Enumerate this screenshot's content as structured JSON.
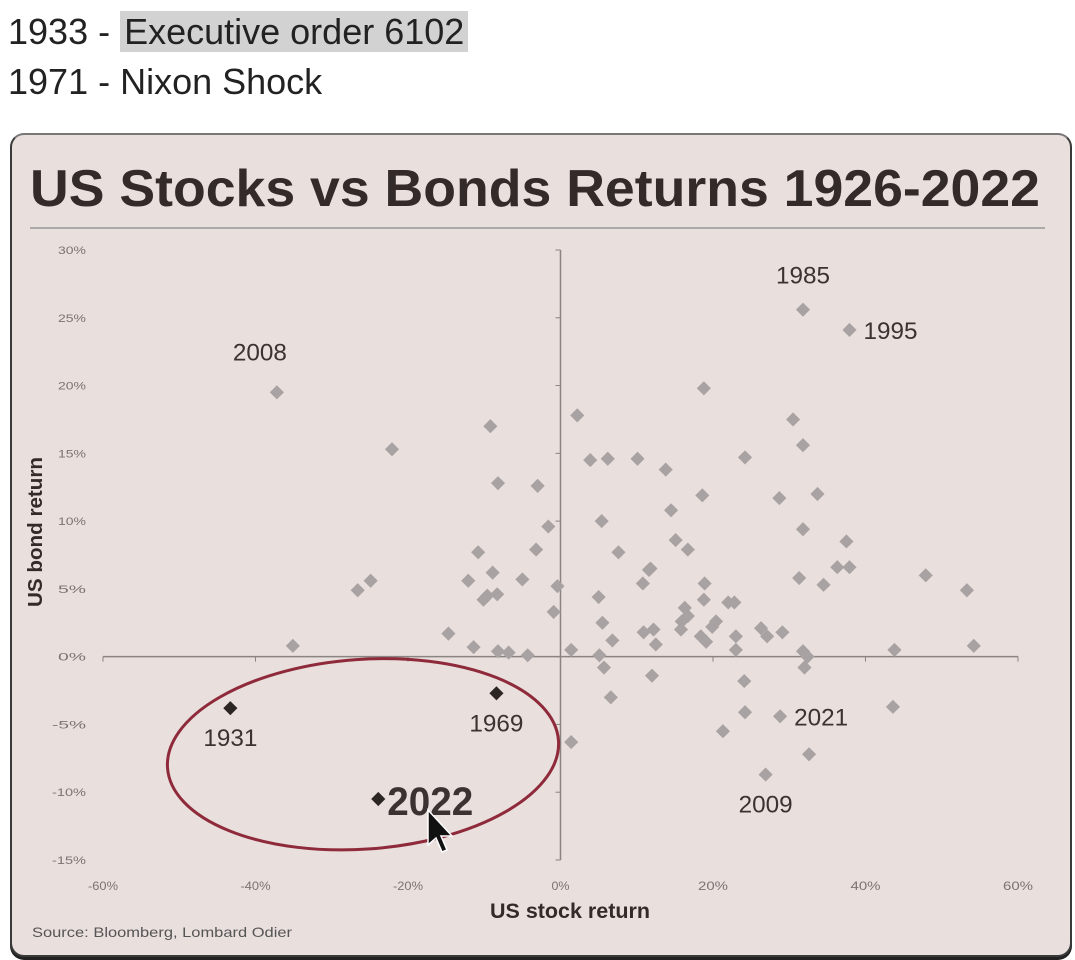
{
  "header": {
    "line1_year": "1933 - ",
    "line1_event": "Executive order 6102",
    "line2": "1971 - Nixon Shock"
  },
  "colors": {
    "background": "#e9dfdd",
    "points": "#a8a3a2",
    "highlight": "#2b2523",
    "ellipse": "#8e2a3a"
  },
  "chart_data": {
    "type": "scatter",
    "title": "US Stocks vs Bonds Returns 1926-2022",
    "xlabel": "US stock return",
    "ylabel": "US bond return",
    "source": "Source: Bloomberg, Lombard Odier",
    "xlim": [
      -60,
      60
    ],
    "ylim": [
      -15,
      30
    ],
    "xticks": [
      "-60%",
      "-40%",
      "-20%",
      "0%",
      "20%",
      "40%",
      "60%"
    ],
    "xtick_values": [
      -60,
      -40,
      -20,
      0,
      20,
      40,
      60
    ],
    "yticks": [
      "30%",
      "25%",
      "20%",
      "15%",
      "10%",
      "5%",
      "0%",
      "-5%",
      "-10%",
      "-15%"
    ],
    "ytick_values": [
      30,
      25,
      20,
      15,
      10,
      5,
      0,
      -5,
      -10,
      -15
    ],
    "grid": false,
    "points": [
      [
        31.8,
        25.6
      ],
      [
        37.9,
        24.1
      ],
      [
        -37.2,
        19.5
      ],
      [
        -22.1,
        15.3
      ],
      [
        -9.2,
        17.0
      ],
      [
        -8.2,
        12.8
      ],
      [
        2.2,
        17.8
      ],
      [
        -3.0,
        12.6
      ],
      [
        3.9,
        14.5
      ],
      [
        6.2,
        14.6
      ],
      [
        10.1,
        14.6
      ],
      [
        13.8,
        13.8
      ],
      [
        18.8,
        19.8
      ],
      [
        14.5,
        10.8
      ],
      [
        24.2,
        14.7
      ],
      [
        30.5,
        17.5
      ],
      [
        31.8,
        15.6
      ],
      [
        33.7,
        12.0
      ],
      [
        28.7,
        11.7
      ],
      [
        18.6,
        11.9
      ],
      [
        -1.6,
        9.6
      ],
      [
        5.4,
        10.0
      ],
      [
        -3.2,
        7.9
      ],
      [
        -10.8,
        7.7
      ],
      [
        -8.9,
        6.2
      ],
      [
        7.6,
        7.7
      ],
      [
        11.6,
        6.4
      ],
      [
        15.1,
        8.6
      ],
      [
        16.7,
        7.9
      ],
      [
        31.8,
        9.4
      ],
      [
        37.5,
        8.5
      ],
      [
        36.3,
        6.6
      ],
      [
        37.9,
        6.6
      ],
      [
        34.5,
        5.3
      ],
      [
        31.3,
        5.8
      ],
      [
        47.9,
        6.0
      ],
      [
        53.3,
        4.9
      ],
      [
        54.2,
        0.8
      ],
      [
        43.8,
        0.5
      ],
      [
        43.6,
        -3.7
      ],
      [
        -26.6,
        4.9
      ],
      [
        -24.9,
        5.6
      ],
      [
        -35.1,
        0.8
      ],
      [
        -14.7,
        1.7
      ],
      [
        -12.1,
        5.6
      ],
      [
        -10.1,
        4.2
      ],
      [
        -9.6,
        4.5
      ],
      [
        -8.3,
        4.6
      ],
      [
        -5.0,
        5.7
      ],
      [
        -11.4,
        0.7
      ],
      [
        -8.2,
        0.4
      ],
      [
        -6.8,
        0.3
      ],
      [
        -4.3,
        0.1
      ],
      [
        -0.4,
        5.2
      ],
      [
        -0.9,
        3.3
      ],
      [
        1.4,
        0.5
      ],
      [
        5.0,
        4.4
      ],
      [
        5.5,
        2.5
      ],
      [
        5.1,
        0.1
      ],
      [
        5.7,
        -0.8
      ],
      [
        6.8,
        1.2
      ],
      [
        6.6,
        -3.0
      ],
      [
        1.4,
        -6.3
      ],
      [
        10.9,
        1.8
      ],
      [
        12.2,
        2.0
      ],
      [
        12.5,
        0.9
      ],
      [
        11.8,
        6.5
      ],
      [
        10.8,
        5.4
      ],
      [
        12.0,
        -1.4
      ],
      [
        15.8,
        2.0
      ],
      [
        16.3,
        3.6
      ],
      [
        16.7,
        3.0
      ],
      [
        15.9,
        2.6
      ],
      [
        18.9,
        5.4
      ],
      [
        18.8,
        4.2
      ],
      [
        18.4,
        1.5
      ],
      [
        19.1,
        1.1
      ],
      [
        19.9,
        2.2
      ],
      [
        20.4,
        2.6
      ],
      [
        22.0,
        4.0
      ],
      [
        22.8,
        4.0
      ],
      [
        23.0,
        1.5
      ],
      [
        23.0,
        0.5
      ],
      [
        26.3,
        2.1
      ],
      [
        27.1,
        1.5
      ],
      [
        29.1,
        1.8
      ],
      [
        24.1,
        -1.8
      ],
      [
        24.2,
        -4.1
      ],
      [
        21.3,
        -5.5
      ],
      [
        28.8,
        -4.4
      ],
      [
        26.9,
        -8.7
      ],
      [
        32.6,
        -7.2
      ],
      [
        31.8,
        0.4
      ],
      [
        32.4,
        0.0
      ],
      [
        32.0,
        -0.8
      ]
    ],
    "labels": [
      {
        "text": "1985",
        "x": 31.8,
        "y": 25.6,
        "pos": "above"
      },
      {
        "text": "1995",
        "x": 37.9,
        "y": 24.1,
        "pos": "right"
      },
      {
        "text": "2008",
        "x": -37.2,
        "y": 19.5,
        "pos": "above-left"
      },
      {
        "text": "2021",
        "x": 28.8,
        "y": -4.4,
        "pos": "right"
      },
      {
        "text": "2009",
        "x": 26.9,
        "y": -8.7,
        "pos": "below"
      }
    ],
    "highlighted": [
      {
        "text": "1931",
        "x": -43.3,
        "y": -3.8,
        "pos": "below"
      },
      {
        "text": "1969",
        "x": -8.4,
        "y": -2.7,
        "pos": "below"
      },
      {
        "text": "2022",
        "x": -23.9,
        "y": -10.5,
        "pos": "right-bold"
      }
    ],
    "annotation": {
      "type": "ellipse",
      "center": [
        -25.9,
        -7.2
      ],
      "radius": [
        25.7,
        7.0
      ]
    }
  }
}
